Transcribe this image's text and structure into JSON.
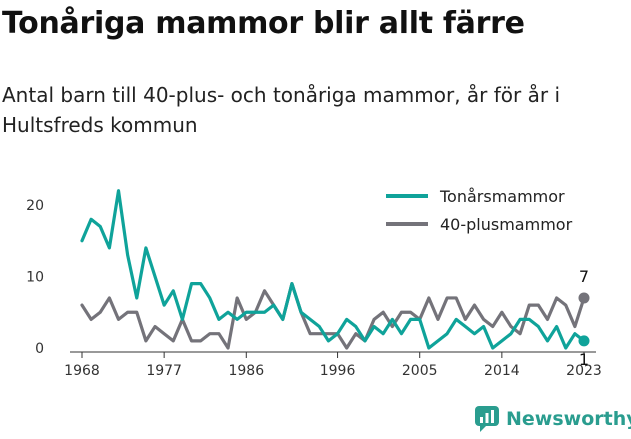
{
  "title": "Tonåriga mammor blir allt färre",
  "subtitle": "Antal barn till 40-plus- och tonåriga mammor, år för år i Hultsfreds kommun",
  "brand": {
    "name": "Newsworthy",
    "icon": "newsworthy-logo-icon"
  },
  "colors": {
    "teen": "#0fa39a",
    "forty": "#74737a",
    "axis": "#333333"
  },
  "chart_data": {
    "type": "line",
    "title": "Tonåriga mammor blir allt färre",
    "subtitle": "Antal barn till 40-plus- och tonåriga mammor, år för år i Hultsfreds kommun",
    "xlabel": "",
    "ylabel": "",
    "x": [
      1968,
      1969,
      1970,
      1971,
      1972,
      1973,
      1974,
      1975,
      1976,
      1977,
      1978,
      1979,
      1980,
      1981,
      1982,
      1983,
      1984,
      1985,
      1986,
      1987,
      1988,
      1989,
      1990,
      1991,
      1992,
      1993,
      1994,
      1995,
      1996,
      1997,
      1998,
      1999,
      2000,
      2001,
      2002,
      2003,
      2004,
      2005,
      2006,
      2007,
      2008,
      2009,
      2010,
      2011,
      2012,
      2013,
      2014,
      2015,
      2016,
      2017,
      2018,
      2019,
      2020,
      2021,
      2022,
      2023
    ],
    "xticks": [
      "1968",
      "1977",
      "1986",
      "1996",
      "2005",
      "2014",
      "2023"
    ],
    "xtick_values": [
      1968,
      1977,
      1986,
      1996,
      2005,
      2014,
      2023
    ],
    "yticks": [
      "0",
      "10",
      "20"
    ],
    "ytick_values": [
      0,
      10,
      20
    ],
    "ylim": [
      0,
      20
    ],
    "xlim": [
      1968,
      2023
    ],
    "grid": false,
    "legend_position": "top-right",
    "series": [
      {
        "name": "Tonårsmammor",
        "color": "#0fa39a",
        "values": [
          15,
          18,
          17,
          14,
          22,
          13,
          7,
          14,
          10,
          6,
          8,
          4,
          9,
          9,
          7,
          4,
          5,
          4,
          5,
          5,
          5,
          6,
          4,
          9,
          5,
          4,
          3,
          1,
          2,
          4,
          3,
          1,
          3,
          2,
          4,
          2,
          4,
          4,
          0,
          1,
          2,
          4,
          3,
          2,
          3,
          0,
          1,
          2,
          4,
          4,
          3,
          1,
          3,
          0,
          2,
          1
        ]
      },
      {
        "name": "40-plusmammor",
        "color": "#74737a",
        "values": [
          6,
          4,
          5,
          7,
          4,
          5,
          5,
          1,
          3,
          2,
          1,
          4,
          1,
          1,
          2,
          2,
          0,
          7,
          4,
          5,
          8,
          6,
          4,
          9,
          5,
          2,
          2,
          2,
          2,
          0,
          2,
          1,
          4,
          5,
          3,
          5,
          5,
          4,
          7,
          4,
          7,
          7,
          4,
          6,
          4,
          3,
          5,
          3,
          2,
          6,
          6,
          4,
          7,
          6,
          3,
          7
        ]
      }
    ],
    "end_labels": [
      {
        "series": "40-plusmammor",
        "text": "7"
      },
      {
        "series": "Tonårsmammor",
        "text": "1"
      }
    ]
  }
}
